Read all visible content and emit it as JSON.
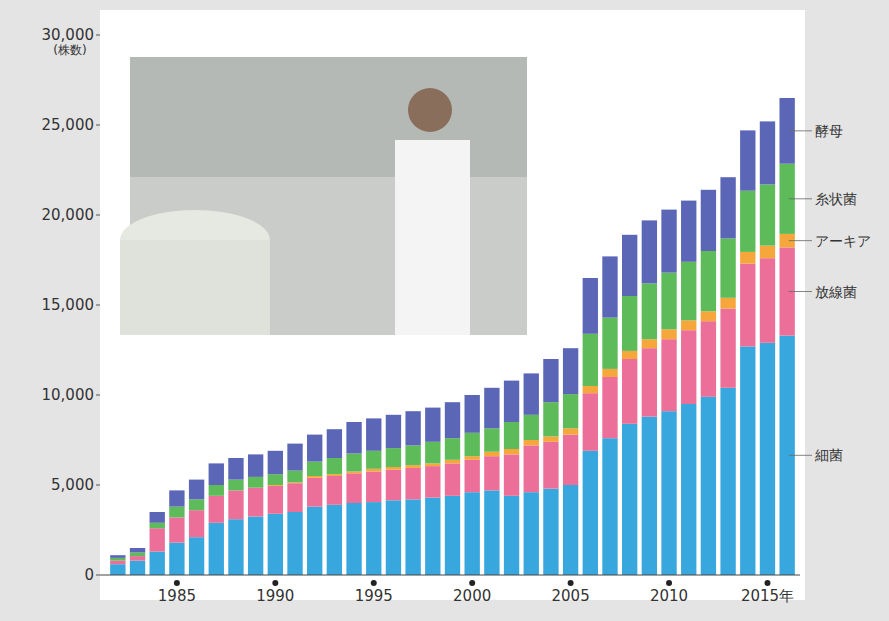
{
  "chart_data": {
    "type": "bar",
    "stacked": true,
    "grid": false,
    "legend": "right",
    "y_label": "(株数)",
    "categories": [
      null,
      null,
      null,
      "1985",
      null,
      null,
      null,
      null,
      "1990",
      null,
      null,
      null,
      null,
      "1995",
      null,
      null,
      null,
      null,
      "2000",
      null,
      null,
      null,
      null,
      "2005",
      null,
      null,
      null,
      null,
      "2010",
      null,
      null,
      null,
      null,
      "2015年",
      null
    ],
    "ylim": [
      0,
      30000
    ],
    "yticks": [
      0,
      {
        "value": 5000,
        "label": "5,000"
      },
      {
        "value": 10000,
        "label": "10,000"
      },
      {
        "value": 15000,
        "label": "15,000"
      },
      {
        "value": 20000,
        "label": "20,000"
      },
      {
        "value": 25000,
        "label": "25,000"
      },
      {
        "value": 30000,
        "label": "30,000"
      }
    ],
    "series": [
      {
        "name": "細菌",
        "color": "#37a7de",
        "values": [
          600,
          800,
          1300,
          1800,
          2100,
          2900,
          3100,
          3250,
          3400,
          3500,
          3800,
          3900,
          4000,
          4050,
          4150,
          4200,
          4300,
          4400,
          4600,
          4700,
          4400,
          4600,
          4800,
          5000,
          6900,
          7600,
          8400,
          8800,
          9100,
          9500,
          9900,
          10400,
          12700,
          12900,
          13300
        ]
      },
      {
        "name": "放線菌",
        "color": "#ec6f99",
        "values": [
          200,
          250,
          1300,
          1400,
          1500,
          1500,
          1600,
          1600,
          1550,
          1600,
          1600,
          1600,
          1650,
          1700,
          1700,
          1750,
          1750,
          1800,
          1800,
          1900,
          2300,
          2600,
          2600,
          2800,
          3200,
          3400,
          3600,
          3800,
          4000,
          4100,
          4200,
          4400,
          4600,
          4700,
          4900
        ]
      },
      {
        "name": "アーキア",
        "color": "#f6a73b",
        "values": [
          0,
          0,
          0,
          0,
          0,
          0,
          0,
          0,
          50,
          50,
          100,
          100,
          100,
          150,
          150,
          150,
          150,
          200,
          200,
          250,
          300,
          300,
          300,
          350,
          400,
          450,
          450,
          500,
          550,
          550,
          550,
          600,
          650,
          700,
          750
        ]
      },
      {
        "name": "糸状菌",
        "color": "#5dbb5a",
        "values": [
          150,
          200,
          300,
          600,
          600,
          600,
          600,
          600,
          600,
          650,
          800,
          900,
          1000,
          1000,
          1050,
          1100,
          1200,
          1200,
          1300,
          1300,
          1500,
          1400,
          1900,
          1900,
          2900,
          2850,
          3050,
          3100,
          3150,
          3250,
          3350,
          3300,
          3400,
          3400,
          3900
        ]
      },
      {
        "name": "酵母",
        "color": "#5b66b6",
        "values": [
          150,
          250,
          600,
          900,
          1100,
          1200,
          1200,
          1250,
          1300,
          1500,
          1500,
          1600,
          1750,
          1800,
          1850,
          1900,
          1900,
          2000,
          2100,
          2250,
          2300,
          2300,
          2400,
          2550,
          3100,
          3400,
          3400,
          3500,
          3500,
          3400,
          3400,
          3400,
          3350,
          3500,
          3650
        ]
      }
    ]
  }
}
